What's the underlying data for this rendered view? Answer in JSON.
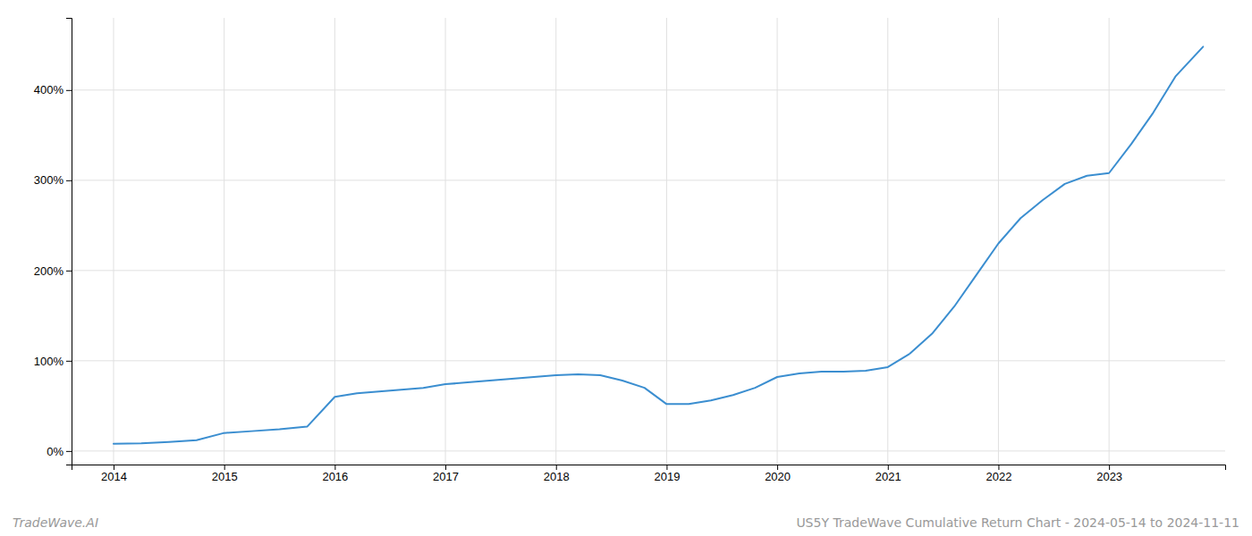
{
  "chart_data": {
    "type": "line",
    "x": [
      2014.0,
      2014.25,
      2014.5,
      2014.75,
      2015.0,
      2015.25,
      2015.5,
      2015.75,
      2016.0,
      2016.2,
      2016.4,
      2016.6,
      2016.8,
      2017.0,
      2017.2,
      2017.4,
      2017.6,
      2017.8,
      2018.0,
      2018.2,
      2018.4,
      2018.6,
      2018.8,
      2019.0,
      2019.2,
      2019.4,
      2019.6,
      2019.8,
      2020.0,
      2020.2,
      2020.4,
      2020.6,
      2020.8,
      2021.0,
      2021.2,
      2021.4,
      2021.6,
      2021.8,
      2022.0,
      2022.2,
      2022.4,
      2022.6,
      2022.8,
      2023.0,
      2023.2,
      2023.4,
      2023.6,
      2023.85
    ],
    "values": [
      8,
      8.5,
      10,
      12,
      20,
      22,
      24,
      27,
      60,
      64,
      66,
      68,
      70,
      74,
      76,
      78,
      80,
      82,
      84,
      85,
      84,
      78,
      70,
      52,
      52,
      56,
      62,
      70,
      82,
      86,
      88,
      88,
      89,
      93,
      108,
      130,
      160,
      195,
      230,
      258,
      278,
      296,
      305,
      308,
      340,
      375,
      415,
      448
    ],
    "color": "#3b8ed0",
    "xlim": [
      2013.62,
      2024.05
    ],
    "xticks": [
      2014,
      2015,
      2016,
      2017,
      2018,
      2019,
      2020,
      2021,
      2022,
      2023
    ],
    "ylim": [
      -15,
      480
    ],
    "yticks": [
      {
        "value": 0,
        "label": "0%"
      },
      {
        "value": 100,
        "label": "100%"
      },
      {
        "value": 200,
        "label": "200%"
      },
      {
        "value": 300,
        "label": "300%"
      },
      {
        "value": 400,
        "label": "400%"
      }
    ],
    "grid": true,
    "annotations": [
      "TradeWave.AI",
      "US5Y TradeWave Cumulative Return Chart - 2024-05-14 to 2024-11-11"
    ]
  }
}
